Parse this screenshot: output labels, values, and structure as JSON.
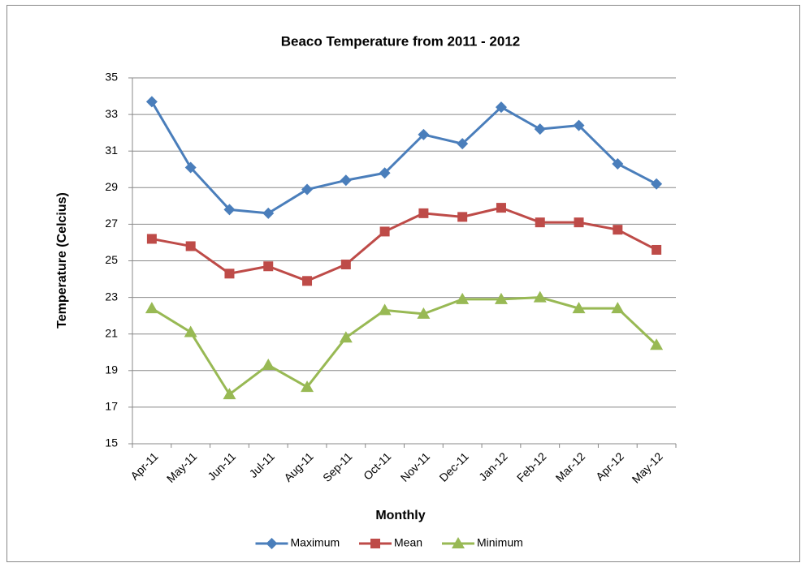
{
  "chart_data": {
    "type": "line",
    "title": "Beaco Temperature from 2011 - 2012",
    "x_label": "Monthly",
    "y_label": "Temperature (Celcius)",
    "categories": [
      "Apr-11",
      "May-11",
      "Jun-11",
      "Jul-11",
      "Aug-11",
      "Sep-11",
      "Oct-11",
      "Nov-11",
      "Dec-11",
      "Jan-12",
      "Feb-12",
      "Mar-12",
      "Apr-12",
      "May-12"
    ],
    "series": [
      {
        "name": "Maximum",
        "color": "#4a7ebb",
        "marker": "diamond",
        "values": [
          33.7,
          30.1,
          27.8,
          27.6,
          28.9,
          29.4,
          29.8,
          31.9,
          31.4,
          33.4,
          32.2,
          32.4,
          30.3,
          29.2
        ]
      },
      {
        "name": "Mean",
        "color": "#be4b48",
        "marker": "square",
        "values": [
          26.2,
          25.8,
          24.3,
          24.7,
          23.9,
          24.8,
          26.6,
          27.6,
          27.4,
          27.9,
          27.1,
          27.1,
          26.7,
          25.6
        ]
      },
      {
        "name": "Minimum",
        "color": "#98b954",
        "marker": "triangle",
        "values": [
          22.4,
          21.1,
          17.7,
          19.3,
          18.1,
          20.8,
          22.3,
          22.1,
          22.9,
          22.9,
          23.0,
          22.4,
          22.4,
          20.4
        ]
      }
    ],
    "ylim": [
      15,
      35
    ],
    "yticks": [
      15,
      17,
      19,
      21,
      23,
      25,
      27,
      29,
      31,
      33,
      35
    ],
    "grid": true,
    "legend": "bottom"
  }
}
